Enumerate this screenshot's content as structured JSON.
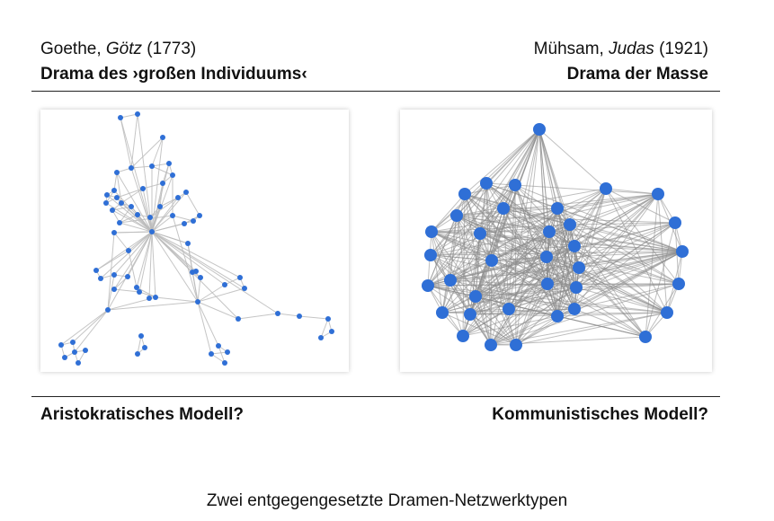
{
  "left": {
    "author": "Goethe,",
    "work_title": "Götz",
    "year": "(1773)",
    "subtitle": "Drama des ›großen Individuums‹",
    "model_label": "Aristokratisches Modell?"
  },
  "right": {
    "author": "Mühsam,",
    "work_title": "Judas",
    "year": "(1921)",
    "subtitle": "Drama der Masse",
    "model_label": "Kommunistisches Modell?"
  },
  "caption": "Zwei entgegengesetzte Dramen-Netzwerktypen",
  "colors": {
    "node": "#2f6fd6",
    "edge_left": "#bbbbbb",
    "edge_right": "#8a8a8a",
    "rule": "#222222"
  }
}
